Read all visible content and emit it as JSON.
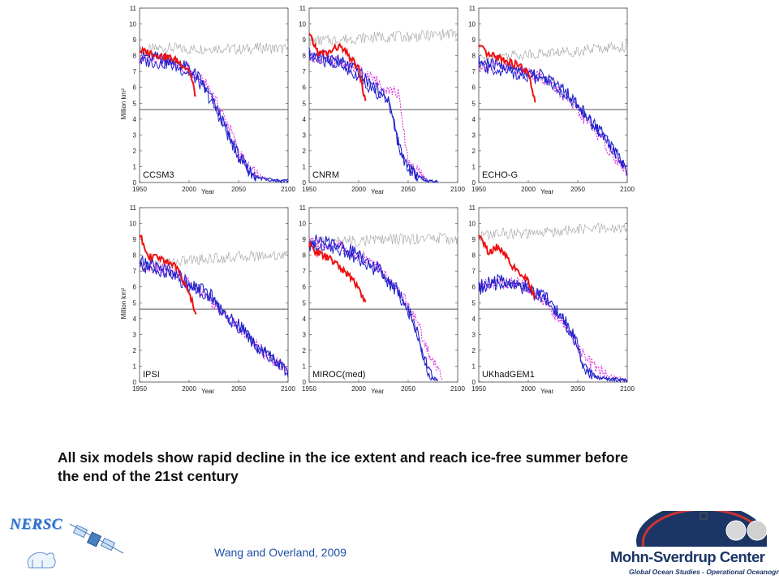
{
  "slide": {
    "caption": "All six models show rapid decline in the ice extent and reach ice-free summer before the end of the 21st century",
    "citation": "Wang and Overland, 2009"
  },
  "logos": {
    "left_text": "NERSC",
    "right_title": "Mohn-Sverdrup Center",
    "right_subtitle": "Global Ocean Studies - Operational Oceanography"
  },
  "colors": {
    "observed": "#ee1111",
    "model": "#2222cc",
    "model_alt": "#dd33dd",
    "control": "#aaaaaa",
    "threshold": "#555555"
  },
  "chart_data": [
    {
      "type": "line",
      "panel": "CCSM3",
      "xlabel": "Year",
      "ylabel": "Million km²",
      "xlim": [
        1950,
        2100
      ],
      "ylim": [
        0,
        11
      ],
      "xticks": [
        1950,
        2000,
        2050,
        2100
      ],
      "yticks": [
        0,
        1,
        2,
        3,
        4,
        5,
        6,
        7,
        8,
        9,
        10,
        11
      ],
      "threshold": 4.6,
      "series": [
        {
          "role": "control",
          "x": [
            1950,
            1975,
            2000,
            2025,
            2050,
            2075,
            2100
          ],
          "y": [
            8.3,
            8.5,
            8.4,
            8.5,
            8.4,
            8.5,
            8.4
          ]
        },
        {
          "role": "observed",
          "x": [
            1950,
            1960,
            1970,
            1980,
            1990,
            2000,
            2007
          ],
          "y": [
            8.3,
            8.2,
            8.0,
            7.9,
            7.6,
            7.1,
            5.4
          ]
        },
        {
          "role": "model",
          "x": [
            1950,
            1980,
            2000,
            2010,
            2020,
            2030,
            2040,
            2050,
            2060,
            2070,
            2080,
            2090,
            2100
          ],
          "y": [
            8.0,
            7.8,
            7.2,
            6.6,
            5.6,
            4.4,
            3.0,
            1.7,
            0.8,
            0.3,
            0.2,
            0.1,
            0.1
          ]
        },
        {
          "role": "model_alt",
          "x": [
            1950,
            1980,
            2000,
            2020,
            2040,
            2050,
            2060,
            2070,
            2080
          ],
          "y": [
            7.8,
            7.7,
            7.1,
            6.0,
            3.6,
            2.0,
            0.9,
            0.4,
            0.2
          ]
        }
      ]
    },
    {
      "type": "line",
      "panel": "CNRM",
      "xlabel": "Year",
      "ylabel": "Million km²",
      "xlim": [
        1950,
        2100
      ],
      "ylim": [
        0,
        11
      ],
      "xticks": [
        1950,
        2000,
        2050,
        2100
      ],
      "yticks": [
        0,
        1,
        2,
        3,
        4,
        5,
        6,
        7,
        8,
        9,
        10,
        11
      ],
      "threshold": 4.6,
      "series": [
        {
          "role": "control",
          "x": [
            1950,
            1975,
            2000,
            2025,
            2050,
            2075,
            2100
          ],
          "y": [
            8.9,
            9.0,
            9.1,
            9.2,
            9.2,
            9.3,
            9.4
          ]
        },
        {
          "role": "observed",
          "x": [
            1950,
            1960,
            1970,
            1980,
            1990,
            2000,
            2007
          ],
          "y": [
            9.3,
            8.1,
            8.2,
            8.6,
            8.0,
            7.2,
            5.0
          ]
        },
        {
          "role": "model",
          "x": [
            1950,
            1980,
            2000,
            2010,
            2020,
            2030,
            2040,
            2045,
            2050,
            2060,
            2070,
            2080
          ],
          "y": [
            8.2,
            7.7,
            7.0,
            6.3,
            5.8,
            5.3,
            2.6,
            1.6,
            0.9,
            0.4,
            0.1,
            0.0
          ]
        },
        {
          "role": "model_alt",
          "x": [
            1950,
            1980,
            2000,
            2020,
            2040,
            2046,
            2050,
            2060,
            2070
          ],
          "y": [
            8.0,
            7.6,
            7.1,
            6.3,
            5.6,
            3.0,
            1.4,
            0.6,
            0.2
          ]
        }
      ]
    },
    {
      "type": "line",
      "panel": "ECHO-G",
      "xlabel": "Year",
      "ylabel": "Million km²",
      "xlim": [
        1950,
        2100
      ],
      "ylim": [
        0,
        11
      ],
      "xticks": [
        1950,
        2000,
        2050,
        2100
      ],
      "yticks": [
        0,
        1,
        2,
        3,
        4,
        5,
        6,
        7,
        8,
        9,
        10,
        11
      ],
      "threshold": 4.6,
      "series": [
        {
          "role": "control",
          "x": [
            1950,
            1975,
            2000,
            2025,
            2050,
            2075,
            2100
          ],
          "y": [
            7.8,
            8.0,
            8.1,
            8.2,
            8.3,
            8.5,
            8.6
          ]
        },
        {
          "role": "observed",
          "x": [
            1950,
            1960,
            1970,
            1980,
            1990,
            2000,
            2007
          ],
          "y": [
            8.6,
            8.0,
            7.9,
            7.6,
            7.4,
            6.9,
            5.0
          ]
        },
        {
          "role": "model",
          "x": [
            1950,
            1980,
            2000,
            2020,
            2040,
            2060,
            2080,
            2090,
            2100
          ],
          "y": [
            7.6,
            7.3,
            7.0,
            6.6,
            5.6,
            4.2,
            2.7,
            1.8,
            0.8
          ]
        },
        {
          "role": "model_alt",
          "x": [
            1950,
            1980,
            2000,
            2020,
            2040,
            2060,
            2080,
            2100
          ],
          "y": [
            7.4,
            7.2,
            7.0,
            6.4,
            5.2,
            3.8,
            2.2,
            0.6
          ]
        }
      ]
    },
    {
      "type": "line",
      "panel": "IPSI",
      "xlabel": "Year",
      "ylabel": "Million km²",
      "xlim": [
        1950,
        2100
      ],
      "ylim": [
        0,
        11
      ],
      "xticks": [
        1950,
        2000,
        2050,
        2100
      ],
      "yticks": [
        0,
        1,
        2,
        3,
        4,
        5,
        6,
        7,
        8,
        9,
        10,
        11
      ],
      "threshold": 4.6,
      "series": [
        {
          "role": "control",
          "x": [
            1950,
            1975,
            2000,
            2025,
            2050,
            2075,
            2100
          ],
          "y": [
            7.2,
            7.5,
            7.7,
            7.8,
            7.9,
            8.0,
            8.0
          ]
        },
        {
          "role": "observed",
          "x": [
            1950,
            1960,
            1970,
            1980,
            1990,
            2000,
            2007
          ],
          "y": [
            9.3,
            7.9,
            7.8,
            7.6,
            7.0,
            5.6,
            4.3
          ]
        },
        {
          "role": "model",
          "x": [
            1950,
            1980,
            2000,
            2020,
            2040,
            2050,
            2060,
            2070,
            2080,
            2090,
            2100
          ],
          "y": [
            7.6,
            7.1,
            6.3,
            5.6,
            4.1,
            3.6,
            3.0,
            2.1,
            1.7,
            1.2,
            0.7
          ]
        },
        {
          "role": "model_alt",
          "x": [
            1950,
            1980,
            2000,
            2020,
            2040,
            2060,
            2080,
            2100
          ],
          "y": [
            7.4,
            7.0,
            6.2,
            5.3,
            4.0,
            2.8,
            1.6,
            0.6
          ]
        }
      ]
    },
    {
      "type": "line",
      "panel": "MIROC(med)",
      "xlabel": "Year",
      "ylabel": "Million km²",
      "xlim": [
        1950,
        2100
      ],
      "ylim": [
        0,
        11
      ],
      "xticks": [
        1950,
        2000,
        2050,
        2100
      ],
      "yticks": [
        0,
        1,
        2,
        3,
        4,
        5,
        6,
        7,
        8,
        9,
        10,
        11
      ],
      "threshold": 4.6,
      "series": [
        {
          "role": "control",
          "x": [
            1950,
            1975,
            2000,
            2025,
            2050,
            2075,
            2100
          ],
          "y": [
            8.8,
            8.9,
            8.9,
            9.0,
            9.0,
            9.1,
            9.0
          ]
        },
        {
          "role": "observed",
          "x": [
            1950,
            1960,
            1970,
            1980,
            1990,
            2000,
            2007
          ],
          "y": [
            8.6,
            8.1,
            7.8,
            7.3,
            6.7,
            6.0,
            4.9
          ]
        },
        {
          "role": "model",
          "x": [
            1950,
            1980,
            2000,
            2020,
            2040,
            2050,
            2060,
            2065,
            2070,
            2075,
            2080
          ],
          "y": [
            9.0,
            8.7,
            8.1,
            7.2,
            5.8,
            4.6,
            3.0,
            1.8,
            0.8,
            0.3,
            0.1
          ]
        },
        {
          "role": "model_alt",
          "x": [
            1950,
            1980,
            2000,
            2020,
            2040,
            2060,
            2070,
            2080,
            2085
          ],
          "y": [
            8.8,
            8.6,
            8.0,
            7.2,
            5.9,
            3.7,
            1.9,
            0.8,
            0.2
          ]
        }
      ]
    },
    {
      "type": "line",
      "panel": "UKhadGEM1",
      "xlabel": "Year",
      "ylabel": "Million km²",
      "xlim": [
        1950,
        2100
      ],
      "ylim": [
        0,
        11
      ],
      "xticks": [
        1950,
        2000,
        2050,
        2100
      ],
      "yticks": [
        0,
        1,
        2,
        3,
        4,
        5,
        6,
        7,
        8,
        9,
        10,
        11
      ],
      "threshold": 4.6,
      "series": [
        {
          "role": "control",
          "x": [
            1950,
            1975,
            2000,
            2025,
            2050,
            2075,
            2100
          ],
          "y": [
            9.2,
            9.4,
            9.3,
            9.5,
            9.6,
            9.7,
            9.6
          ]
        },
        {
          "role": "observed",
          "x": [
            1950,
            1960,
            1970,
            1980,
            1990,
            2000,
            2007
          ],
          "y": [
            9.4,
            8.1,
            8.6,
            7.7,
            6.8,
            6.4,
            5.2
          ]
        },
        {
          "role": "model",
          "x": [
            1950,
            1970,
            1990,
            2000,
            2020,
            2030,
            2040,
            2050,
            2055,
            2060,
            2070,
            2080,
            2100
          ],
          "y": [
            6.1,
            6.4,
            6.3,
            6.0,
            5.2,
            4.4,
            3.6,
            2.4,
            1.1,
            0.6,
            0.3,
            0.2,
            0.1
          ]
        },
        {
          "role": "model_alt",
          "x": [
            1950,
            1970,
            1990,
            2000,
            2020,
            2030,
            2040,
            2050,
            2060,
            2080,
            2100
          ],
          "y": [
            6.0,
            6.3,
            6.2,
            5.9,
            5.0,
            4.0,
            3.2,
            2.3,
            1.3,
            0.4,
            0.1
          ]
        }
      ]
    }
  ]
}
